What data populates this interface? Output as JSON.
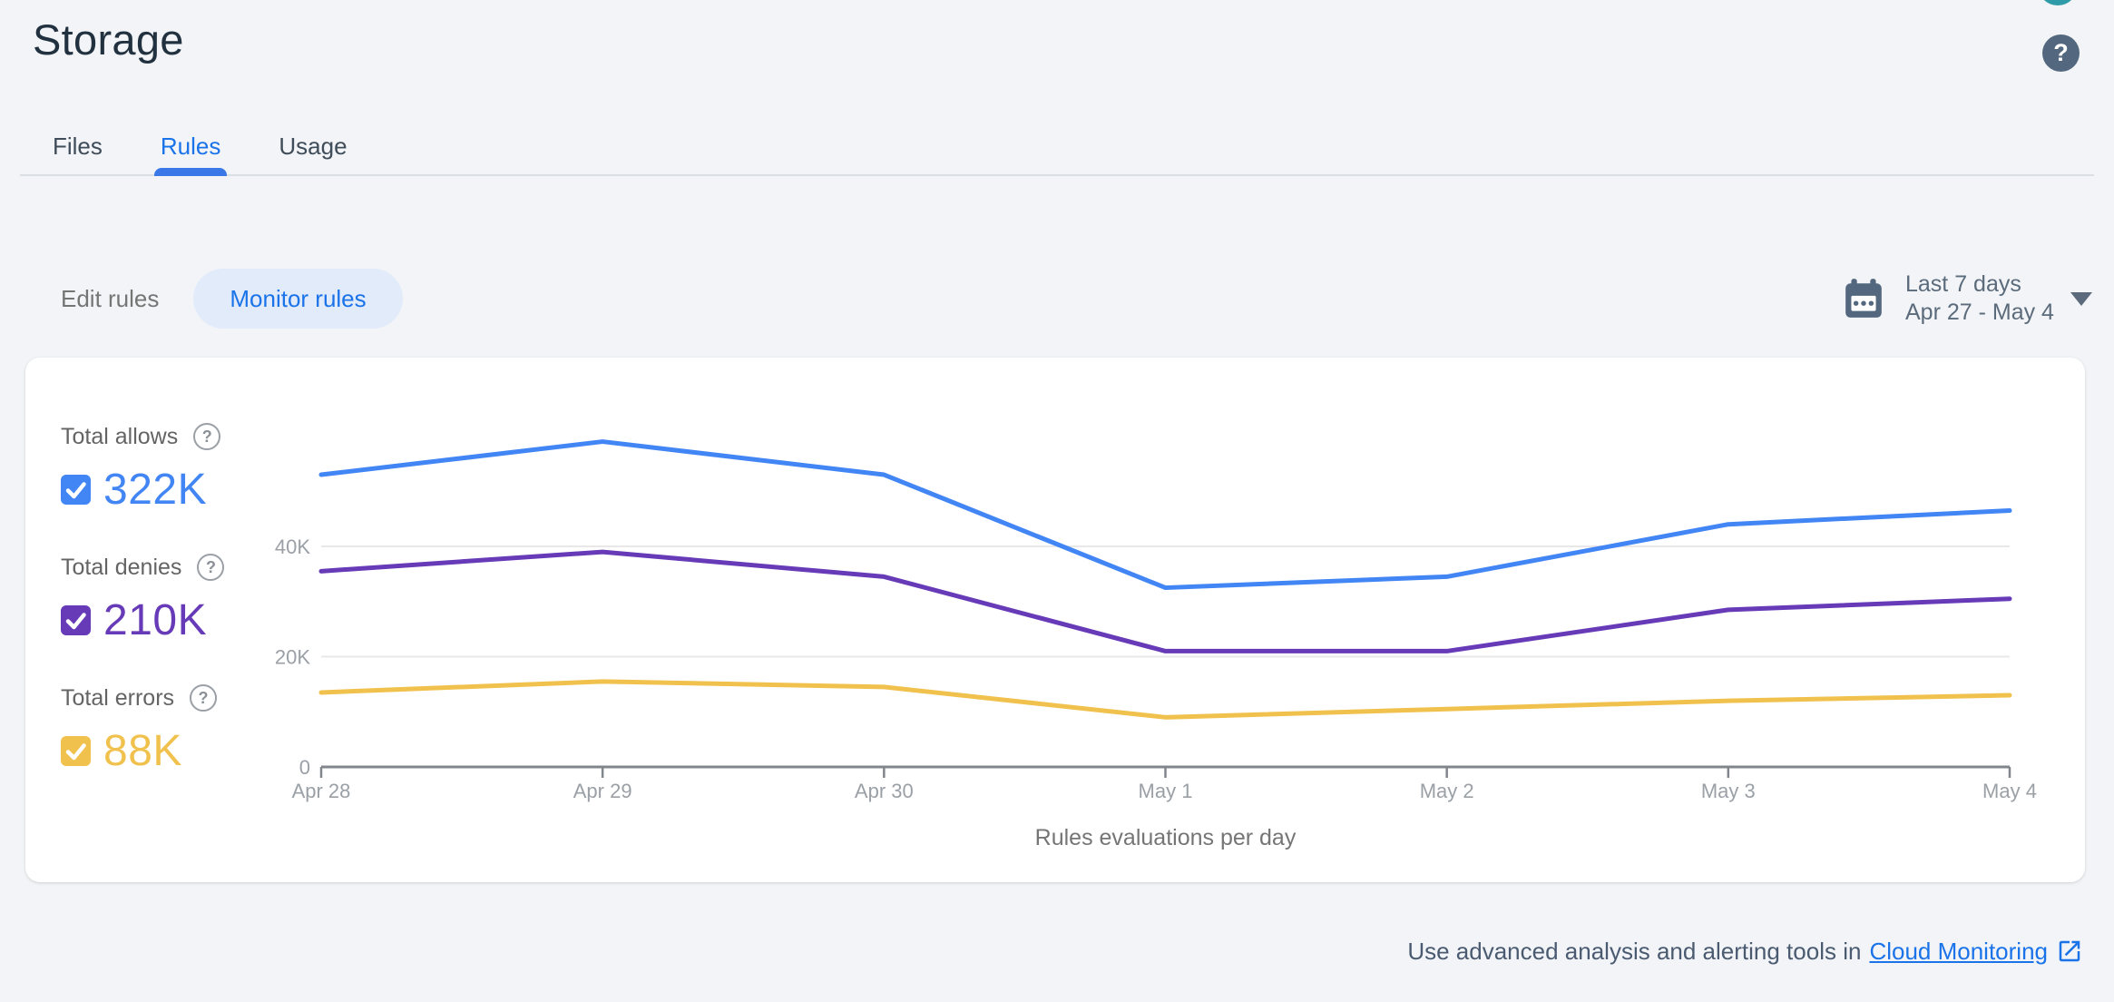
{
  "header": {
    "title": "Storage"
  },
  "icons": {
    "help_glyph": "?"
  },
  "tabs": [
    {
      "label": "Files",
      "active": false
    },
    {
      "label": "Rules",
      "active": true
    },
    {
      "label": "Usage",
      "active": false
    }
  ],
  "controls": {
    "edit_rules_label": "Edit rules",
    "monitor_rules_label": "Monitor rules",
    "date_range": {
      "line1": "Last 7 days",
      "line2": "Apr 27 - May 4"
    }
  },
  "legend": [
    {
      "label": "Total allows",
      "value": "322K",
      "color": "#4285f4",
      "checked": true
    },
    {
      "label": "Total denies",
      "value": "210K",
      "color": "#673ab7",
      "checked": true
    },
    {
      "label": "Total errors",
      "value": "88K",
      "color": "#f1c14d",
      "checked": true
    }
  ],
  "chart_data": {
    "type": "line",
    "title": "Rules evaluations per day",
    "categories": [
      "Apr 28",
      "Apr 29",
      "Apr 30",
      "May 1",
      "May 2",
      "May 3",
      "May 4"
    ],
    "series": [
      {
        "name": "Total allows",
        "color": "#4285f4",
        "values": [
          53000,
          59000,
          53000,
          32500,
          34500,
          44000,
          46500
        ]
      },
      {
        "name": "Total denies",
        "color": "#673ab7",
        "values": [
          35500,
          39000,
          34500,
          21000,
          21000,
          28500,
          30500
        ]
      },
      {
        "name": "Total errors",
        "color": "#f1c14d",
        "values": [
          13500,
          15500,
          14500,
          9000,
          10500,
          12000,
          13000
        ]
      }
    ],
    "ylim": [
      0,
      65000
    ],
    "yticks": [
      {
        "value": 0,
        "label": "0"
      },
      {
        "value": 20000,
        "label": "20K"
      },
      {
        "value": 40000,
        "label": "40K"
      }
    ],
    "grid": "horizontal",
    "legend_position": "left"
  },
  "footer": {
    "text": "Use advanced analysis and alerting tools in",
    "link": "Cloud Monitoring"
  },
  "colors": {
    "accent_blue": "#1a73e8",
    "tab_underline": "#3b78e7",
    "pill_bg": "#e2ebfa",
    "slate_icon": "#53687e",
    "axis_line": "#81868d",
    "gridline": "#e8e8e8",
    "avatar_teal": "#2f9aa8"
  }
}
